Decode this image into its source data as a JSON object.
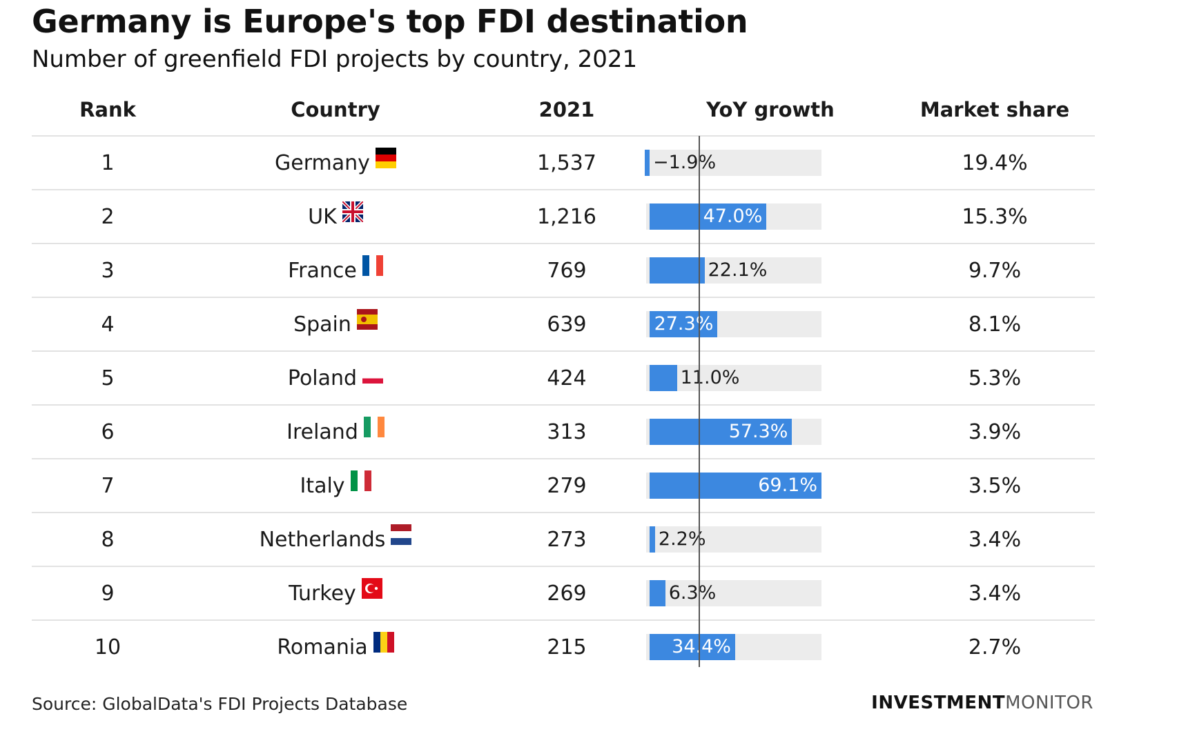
{
  "title": "Germany is Europe's top FDI destination",
  "subtitle": "Number of greenfield FDI projects by country, 2021",
  "headers": {
    "rank": "Rank",
    "country": "Country",
    "year": "2021",
    "growth": "YoY growth",
    "share": "Market share"
  },
  "colors": {
    "bar": "#3c88e0",
    "track": "#ececec"
  },
  "chart_data": {
    "type": "table",
    "columns": [
      "Rank",
      "Country",
      "2021",
      "YoY growth",
      "Market share"
    ],
    "growth_axis_max": 69.1,
    "rows": [
      {
        "rank": "1",
        "country": "Germany",
        "flag": "germany-flag",
        "projects": "1,537",
        "growth": -1.9,
        "growth_label": "−1.9%",
        "share": "19.4%"
      },
      {
        "rank": "2",
        "country": "UK",
        "flag": "uk-flag",
        "projects": "1,216",
        "growth": 47.0,
        "growth_label": "47.0%",
        "share": "15.3%"
      },
      {
        "rank": "3",
        "country": "France",
        "flag": "france-flag",
        "projects": "769",
        "growth": 22.1,
        "growth_label": "22.1%",
        "share": "9.7%"
      },
      {
        "rank": "4",
        "country": "Spain",
        "flag": "spain-flag",
        "projects": "639",
        "growth": 27.3,
        "growth_label": "27.3%",
        "share": "8.1%"
      },
      {
        "rank": "5",
        "country": "Poland",
        "flag": "poland-flag",
        "projects": "424",
        "growth": 11.0,
        "growth_label": "11.0%",
        "share": "5.3%"
      },
      {
        "rank": "6",
        "country": "Ireland",
        "flag": "ireland-flag",
        "projects": "313",
        "growth": 57.3,
        "growth_label": "57.3%",
        "share": "3.9%"
      },
      {
        "rank": "7",
        "country": "Italy",
        "flag": "italy-flag",
        "projects": "279",
        "growth": 69.1,
        "growth_label": "69.1%",
        "share": "3.5%"
      },
      {
        "rank": "8",
        "country": "Netherlands",
        "flag": "netherlands-flag",
        "projects": "273",
        "growth": 2.2,
        "growth_label": "2.2%",
        "share": "3.4%"
      },
      {
        "rank": "9",
        "country": "Turkey",
        "flag": "turkey-flag",
        "projects": "269",
        "growth": 6.3,
        "growth_label": "6.3%",
        "share": "3.4%"
      },
      {
        "rank": "10",
        "country": "Romania",
        "flag": "romania-flag",
        "projects": "215",
        "growth": 34.4,
        "growth_label": "34.4%",
        "share": "2.7%"
      }
    ]
  },
  "footer": {
    "source": "Source: GlobalData's FDI Projects Database",
    "brand_bold": "INVESTMENT",
    "brand_light": "MONITOR"
  }
}
